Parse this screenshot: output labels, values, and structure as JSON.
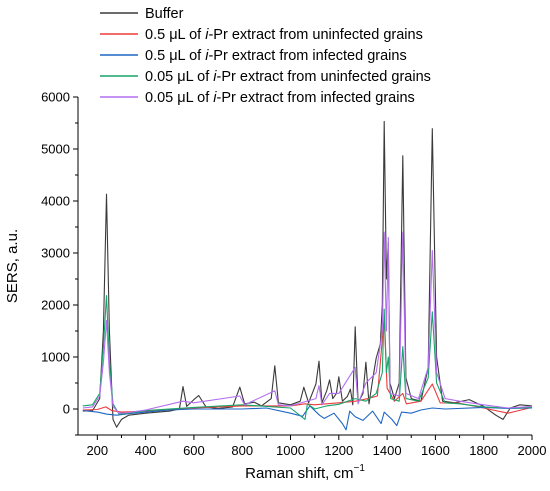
{
  "chart_data": {
    "type": "line",
    "xlabel": "Raman shift, cm",
    "xlabel_superscript": "−1",
    "ylabel": "SERS, a.u.",
    "xlim": [
      120,
      2000
    ],
    "ylim": [
      -500,
      6000
    ],
    "x_ticks": [
      200,
      400,
      600,
      800,
      1000,
      1200,
      1400,
      1600,
      1800,
      2000
    ],
    "y_ticks": [
      0,
      1000,
      2000,
      3000,
      4000,
      5000,
      6000
    ],
    "grid": false,
    "legend_position": "top-left",
    "series": [
      {
        "name": "Buffer",
        "legend": {
          "pre": "Buffer",
          "mu": "",
          "mid": "",
          "italic": "",
          "post": ""
        },
        "color": "#3a3a3a",
        "points": [
          [
            140,
            -40
          ],
          [
            180,
            -30
          ],
          [
            210,
            200
          ],
          [
            225,
            1500
          ],
          [
            238,
            4130
          ],
          [
            250,
            1500
          ],
          [
            265,
            -200
          ],
          [
            280,
            -350
          ],
          [
            300,
            -200
          ],
          [
            330,
            -120
          ],
          [
            400,
            -80
          ],
          [
            500,
            -40
          ],
          [
            540,
            0
          ],
          [
            555,
            430
          ],
          [
            570,
            50
          ],
          [
            600,
            180
          ],
          [
            620,
            260
          ],
          [
            650,
            40
          ],
          [
            700,
            10
          ],
          [
            760,
            40
          ],
          [
            790,
            420
          ],
          [
            810,
            100
          ],
          [
            850,
            130
          ],
          [
            880,
            60
          ],
          [
            920,
            200
          ],
          [
            935,
            830
          ],
          [
            950,
            120
          ],
          [
            1000,
            80
          ],
          [
            1040,
            150
          ],
          [
            1055,
            420
          ],
          [
            1075,
            120
          ],
          [
            1105,
            480
          ],
          [
            1118,
            920
          ],
          [
            1130,
            120
          ],
          [
            1150,
            350
          ],
          [
            1162,
            560
          ],
          [
            1175,
            200
          ],
          [
            1190,
            300
          ],
          [
            1200,
            620
          ],
          [
            1215,
            150
          ],
          [
            1235,
            240
          ],
          [
            1248,
            380
          ],
          [
            1258,
            80
          ],
          [
            1268,
            1580
          ],
          [
            1280,
            120
          ],
          [
            1300,
            300
          ],
          [
            1312,
            900
          ],
          [
            1325,
            100
          ],
          [
            1340,
            560
          ],
          [
            1355,
            980
          ],
          [
            1372,
            1250
          ],
          [
            1380,
            2000
          ],
          [
            1388,
            5530
          ],
          [
            1397,
            2500
          ],
          [
            1405,
            3200
          ],
          [
            1412,
            500
          ],
          [
            1430,
            200
          ],
          [
            1450,
            500
          ],
          [
            1465,
            4870
          ],
          [
            1478,
            600
          ],
          [
            1500,
            200
          ],
          [
            1540,
            150
          ],
          [
            1570,
            800
          ],
          [
            1587,
            5390
          ],
          [
            1605,
            1000
          ],
          [
            1630,
            150
          ],
          [
            1680,
            120
          ],
          [
            1740,
            180
          ],
          [
            1800,
            50
          ],
          [
            1850,
            -120
          ],
          [
            1880,
            -200
          ],
          [
            1910,
            20
          ],
          [
            1950,
            80
          ],
          [
            2000,
            60
          ]
        ]
      },
      {
        "name": "0.5 μL of i-Pr extract from uninfected grains",
        "legend": {
          "pre": "0.5 ",
          "mu": "μ",
          "mid": "L of ",
          "italic": "i",
          "post": "-Pr extract from uninfected grains"
        },
        "color": "#ee3b3b",
        "points": [
          [
            140,
            -20
          ],
          [
            200,
            -10
          ],
          [
            235,
            40
          ],
          [
            260,
            -30
          ],
          [
            300,
            -60
          ],
          [
            400,
            -40
          ],
          [
            600,
            20
          ],
          [
            800,
            60
          ],
          [
            1000,
            60
          ],
          [
            1060,
            100
          ],
          [
            1100,
            80
          ],
          [
            1200,
            120
          ],
          [
            1270,
            150
          ],
          [
            1320,
            200
          ],
          [
            1360,
            250
          ],
          [
            1388,
            1750
          ],
          [
            1400,
            400
          ],
          [
            1430,
            150
          ],
          [
            1465,
            300
          ],
          [
            1480,
            100
          ],
          [
            1540,
            150
          ],
          [
            1587,
            480
          ],
          [
            1620,
            120
          ],
          [
            1700,
            110
          ],
          [
            1800,
            20
          ],
          [
            1900,
            -80
          ],
          [
            2000,
            30
          ]
        ]
      },
      {
        "name": "0.5 μL of i-Pr extract from infected grains",
        "legend": {
          "pre": "0.5 ",
          "mu": "μ",
          "mid": "L of ",
          "italic": "i",
          "post": "-Pr extract from infected grains"
        },
        "color": "#1f66c4",
        "points": [
          [
            140,
            -30
          ],
          [
            200,
            -60
          ],
          [
            240,
            -100
          ],
          [
            280,
            -120
          ],
          [
            330,
            -90
          ],
          [
            400,
            -60
          ],
          [
            500,
            -20
          ],
          [
            600,
            0
          ],
          [
            800,
            0
          ],
          [
            900,
            20
          ],
          [
            1000,
            -80
          ],
          [
            1050,
            -140
          ],
          [
            1080,
            60
          ],
          [
            1120,
            -120
          ],
          [
            1140,
            -180
          ],
          [
            1180,
            -80
          ],
          [
            1215,
            -280
          ],
          [
            1230,
            -400
          ],
          [
            1245,
            -40
          ],
          [
            1268,
            -150
          ],
          [
            1300,
            -220
          ],
          [
            1340,
            -40
          ],
          [
            1375,
            -280
          ],
          [
            1388,
            -60
          ],
          [
            1420,
            -200
          ],
          [
            1440,
            -320
          ],
          [
            1460,
            -60
          ],
          [
            1500,
            -80
          ],
          [
            1540,
            -20
          ],
          [
            1587,
            20
          ],
          [
            1640,
            0
          ],
          [
            1800,
            30
          ],
          [
            1900,
            10
          ],
          [
            2000,
            20
          ]
        ]
      },
      {
        "name": "0.05 μL of i-Pr extract from uninfected grains",
        "legend": {
          "pre": "0.05 ",
          "mu": "μ",
          "mid": "L of ",
          "italic": "i",
          "post": "-Pr extract from uninfected grains"
        },
        "color": "#1aa36b",
        "points": [
          [
            140,
            60
          ],
          [
            180,
            80
          ],
          [
            210,
            300
          ],
          [
            225,
            1200
          ],
          [
            238,
            2180
          ],
          [
            250,
            900
          ],
          [
            265,
            100
          ],
          [
            290,
            -100
          ],
          [
            330,
            -80
          ],
          [
            400,
            -30
          ],
          [
            600,
            30
          ],
          [
            800,
            80
          ],
          [
            900,
            50
          ],
          [
            1000,
            20
          ],
          [
            1060,
            -200
          ],
          [
            1070,
            100
          ],
          [
            1100,
            0
          ],
          [
            1150,
            60
          ],
          [
            1200,
            90
          ],
          [
            1268,
            200
          ],
          [
            1312,
            150
          ],
          [
            1355,
            300
          ],
          [
            1380,
            700
          ],
          [
            1388,
            1920
          ],
          [
            1397,
            700
          ],
          [
            1405,
            1000
          ],
          [
            1415,
            200
          ],
          [
            1450,
            150
          ],
          [
            1465,
            1200
          ],
          [
            1478,
            200
          ],
          [
            1530,
            150
          ],
          [
            1570,
            600
          ],
          [
            1587,
            1870
          ],
          [
            1605,
            500
          ],
          [
            1640,
            120
          ],
          [
            1700,
            100
          ],
          [
            1800,
            40
          ],
          [
            1900,
            20
          ],
          [
            2000,
            30
          ]
        ]
      },
      {
        "name": "0.05 μL of i-Pr extract from infected grains",
        "legend": {
          "pre": "0.05 ",
          "mu": "μ",
          "mid": "L of ",
          "italic": "i",
          "post": "-Pr extract from infected grains"
        },
        "color": "#b36ef0",
        "points": [
          [
            140,
            20
          ],
          [
            180,
            40
          ],
          [
            210,
            250
          ],
          [
            225,
            900
          ],
          [
            238,
            1700
          ],
          [
            250,
            700
          ],
          [
            265,
            50
          ],
          [
            290,
            -80
          ],
          [
            330,
            -70
          ],
          [
            400,
            -20
          ],
          [
            555,
            150
          ],
          [
            600,
            120
          ],
          [
            790,
            250
          ],
          [
            810,
            80
          ],
          [
            935,
            350
          ],
          [
            950,
            80
          ],
          [
            1000,
            60
          ],
          [
            1105,
            200
          ],
          [
            1118,
            450
          ],
          [
            1130,
            80
          ],
          [
            1162,
            300
          ],
          [
            1200,
            300
          ],
          [
            1268,
            800
          ],
          [
            1280,
            100
          ],
          [
            1312,
            500
          ],
          [
            1355,
            700
          ],
          [
            1380,
            1500
          ],
          [
            1388,
            3400
          ],
          [
            1397,
            1500
          ],
          [
            1405,
            3300
          ],
          [
            1412,
            300
          ],
          [
            1450,
            250
          ],
          [
            1465,
            3400
          ],
          [
            1478,
            300
          ],
          [
            1530,
            200
          ],
          [
            1570,
            800
          ],
          [
            1587,
            3050
          ],
          [
            1605,
            700
          ],
          [
            1640,
            200
          ],
          [
            1700,
            150
          ],
          [
            1800,
            80
          ],
          [
            1900,
            20
          ],
          [
            2000,
            50
          ]
        ]
      }
    ]
  }
}
